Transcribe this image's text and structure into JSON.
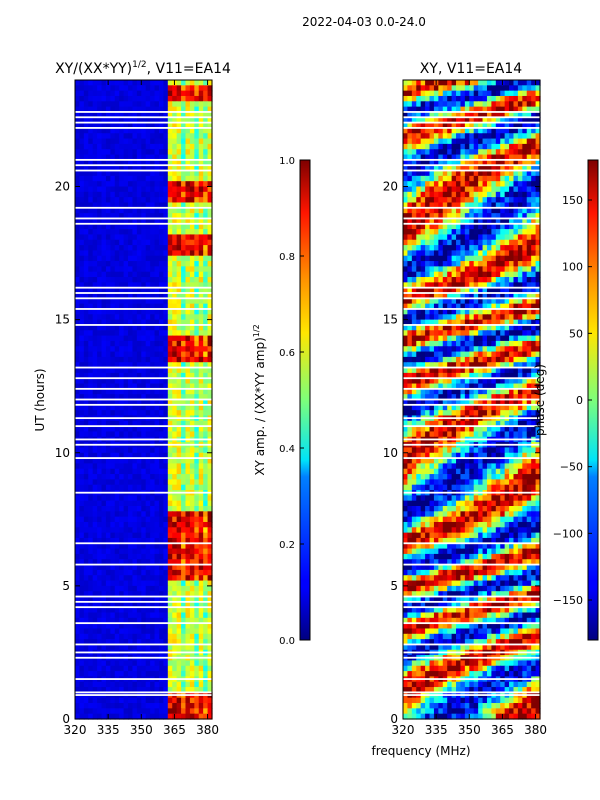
{
  "suptitle": "2022-04-03 0.0-24.0",
  "shared_xlabel": "frequency (MHz)",
  "chart_data": [
    {
      "type": "heatmap",
      "title": "XY/(XX*YY)^1/2, V11=EA14",
      "title_main": "XY/(XX*YY)",
      "title_sup": "1/2",
      "title_tail": ", V11=EA14",
      "ylabel": "UT (hours)",
      "xlim": [
        320,
        382
      ],
      "ylim": [
        0,
        24
      ],
      "xticks": [
        320,
        335,
        350,
        365,
        380
      ],
      "yticks": [
        0,
        5,
        10,
        15,
        20
      ],
      "colormap": "jet",
      "bright_channel_start_mhz": 363,
      "bright_channel_columns_mhz": [
        364,
        367.5,
        372,
        377,
        381
      ],
      "bright_hours": [
        [
          0,
          0.9
        ],
        [
          5.2,
          7.8
        ],
        [
          13.5,
          14.3
        ],
        [
          17.5,
          18.2
        ],
        [
          19.5,
          20.1
        ],
        [
          23.2,
          23.8
        ]
      ],
      "flagged_hours": [
        0.9,
        1.0,
        1.5,
        2.3,
        2.5,
        2.8,
        3.6,
        4.2,
        4.4,
        4.6,
        5.8,
        6.6,
        8.5,
        9.8,
        10.3,
        10.5,
        11.0,
        11.3,
        11.8,
        12.0,
        12.4,
        12.8,
        13.2,
        14.8,
        15.4,
        15.8,
        16.0,
        16.2,
        18.6,
        18.8,
        19.2,
        20.6,
        20.8,
        21.0,
        22.2,
        22.4,
        22.6,
        22.8
      ],
      "colorbar": {
        "label": "XY amp. / (XX*YY amp)^1/2",
        "label_main": "XY amp. / (XX*YY amp)",
        "label_sup": "1/2",
        "range": [
          0.0,
          1.0
        ],
        "ticks": [
          "0.0",
          "0.2",
          "0.4",
          "0.6",
          "0.8",
          "1.0"
        ]
      }
    },
    {
      "type": "heatmap",
      "title": "XY, V11=EA14",
      "ylabel": "",
      "xlim": [
        320,
        382
      ],
      "ylim": [
        0,
        24
      ],
      "xticks": [
        320,
        335,
        350,
        365,
        380
      ],
      "yticks": [
        0,
        5,
        10,
        15,
        20
      ],
      "colormap": "jet",
      "flagged_hours": [
        0.9,
        1.0,
        1.5,
        2.3,
        2.5,
        2.8,
        3.6,
        4.2,
        4.4,
        4.6,
        5.8,
        6.6,
        8.5,
        9.8,
        10.3,
        10.5,
        11.0,
        11.3,
        11.8,
        12.0,
        12.4,
        12.8,
        13.2,
        14.8,
        15.4,
        15.8,
        16.0,
        16.2,
        18.6,
        18.8,
        19.2,
        20.6,
        20.8,
        21.0,
        22.2,
        22.4,
        22.6,
        22.8
      ],
      "colorbar": {
        "label": "phase (deg)",
        "range": [
          -180,
          180
        ],
        "ticks": [
          "−150",
          "−100",
          "−50",
          "0",
          "50",
          "100",
          "150"
        ],
        "tick_values": [
          -150,
          -100,
          -50,
          0,
          50,
          100,
          150
        ]
      }
    }
  ]
}
